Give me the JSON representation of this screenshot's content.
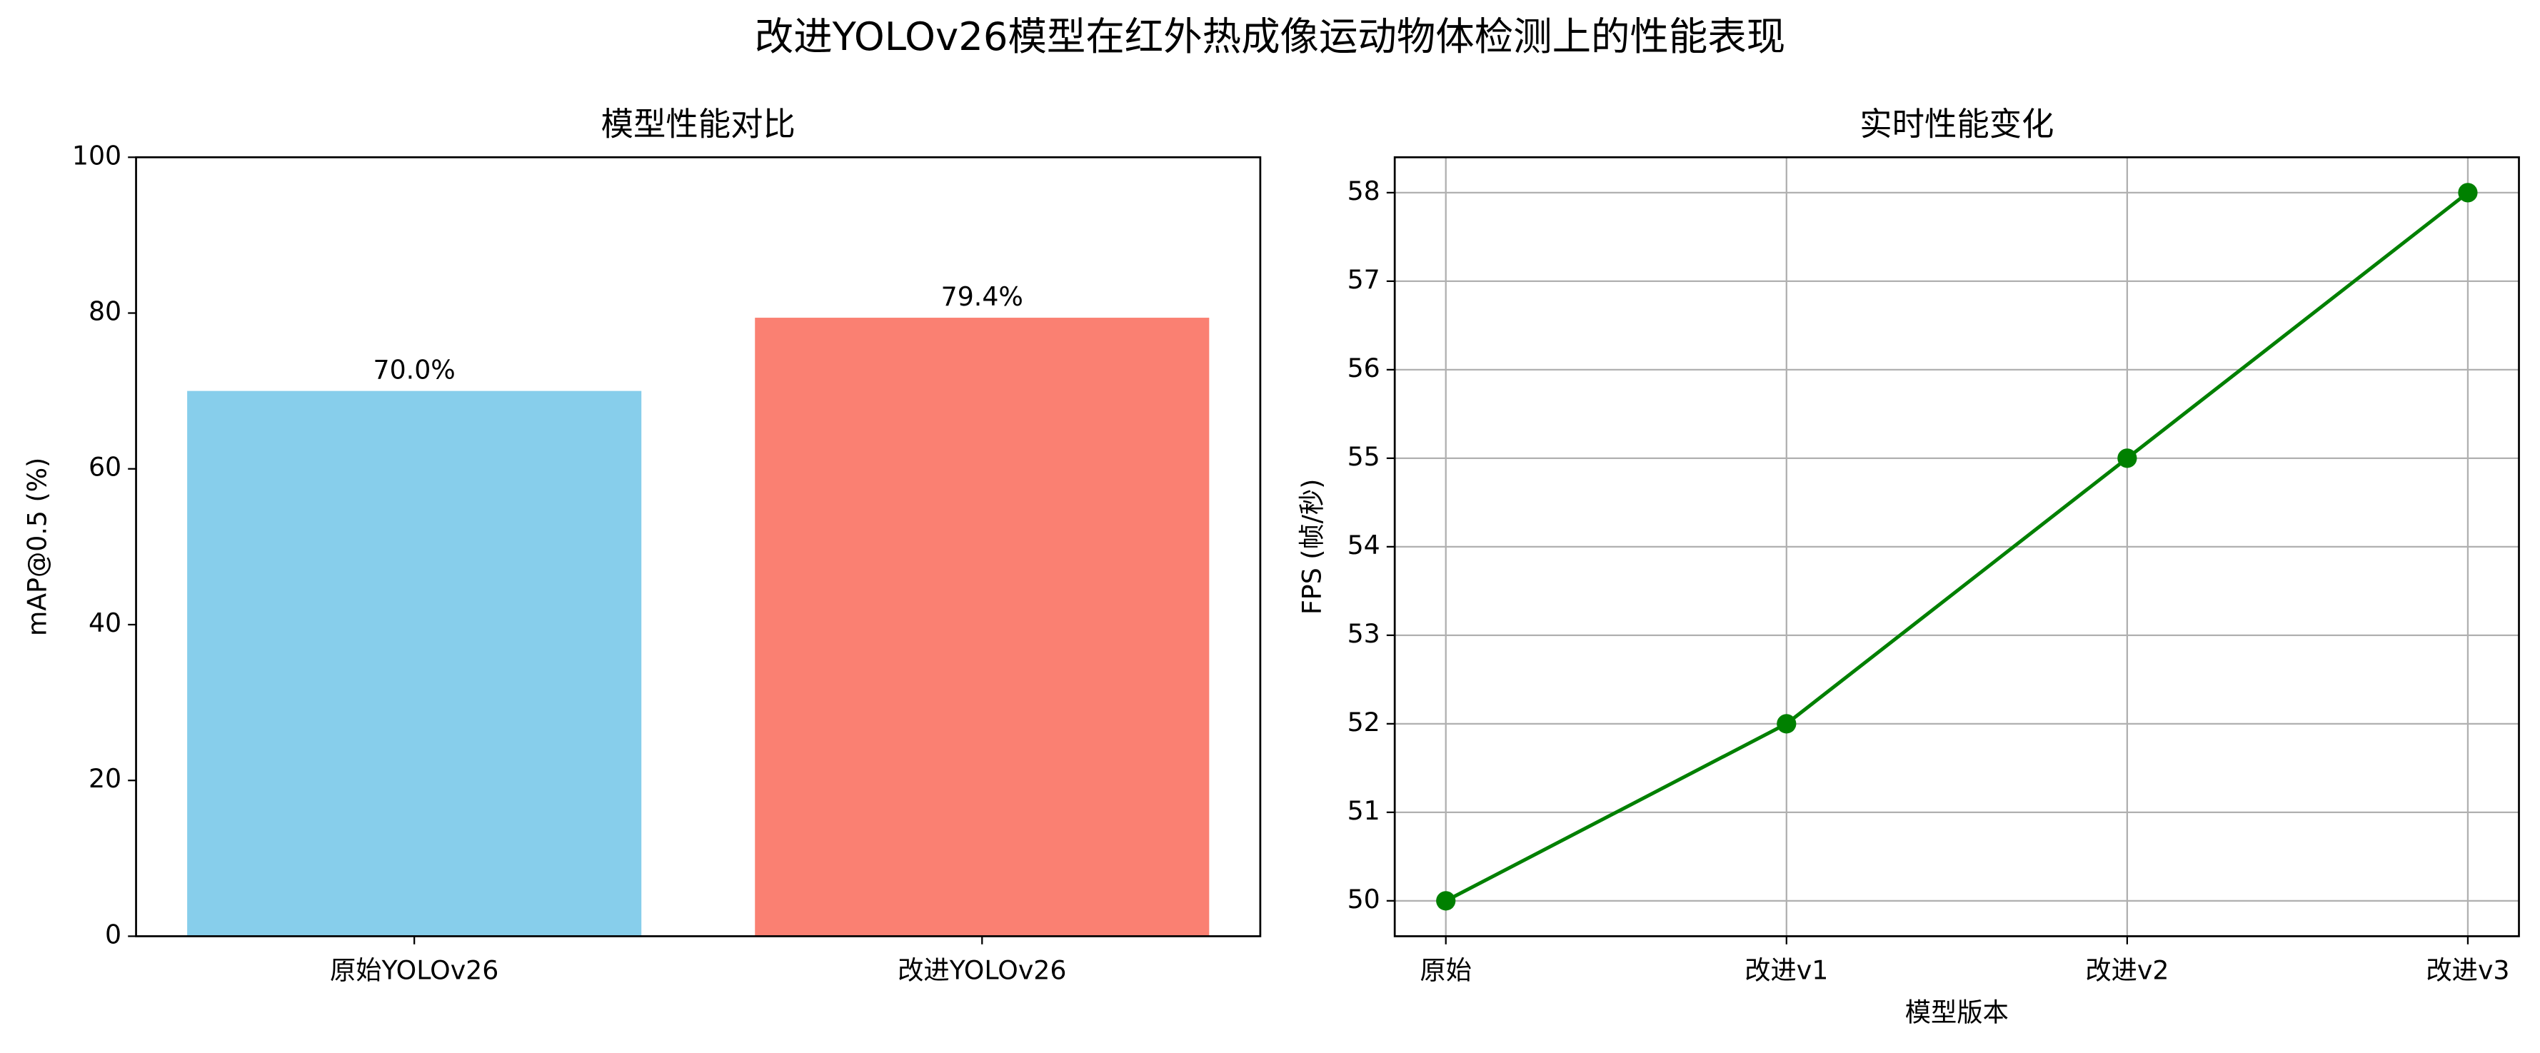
{
  "title": "改进YOLOv26模型在红外热成像运动物体检测上的性能表现",
  "chart_data": [
    {
      "type": "bar",
      "title": "模型性能对比",
      "ylabel": "mAP@0.5 (%)",
      "categories": [
        "原始YOLOv26",
        "改进YOLOv26"
      ],
      "values": [
        70.0,
        79.4
      ],
      "value_labels": [
        "70.0%",
        "79.4%"
      ],
      "colors": [
        "#87ceeb",
        "#fa8072"
      ],
      "ylim": [
        0,
        100
      ],
      "yticks": [
        0,
        20,
        40,
        60,
        80,
        100
      ],
      "grid": false
    },
    {
      "type": "line",
      "title": "实时性能变化",
      "xlabel": "模型版本",
      "ylabel": "FPS (帧/秒)",
      "categories": [
        "原始",
        "改进v1",
        "改进v2",
        "改进v3"
      ],
      "values": [
        50,
        52,
        55,
        58
      ],
      "color": "#008000",
      "ylim": [
        49.6,
        58.4
      ],
      "yticks": [
        50,
        51,
        52,
        53,
        54,
        55,
        56,
        57,
        58
      ],
      "grid": true
    }
  ]
}
